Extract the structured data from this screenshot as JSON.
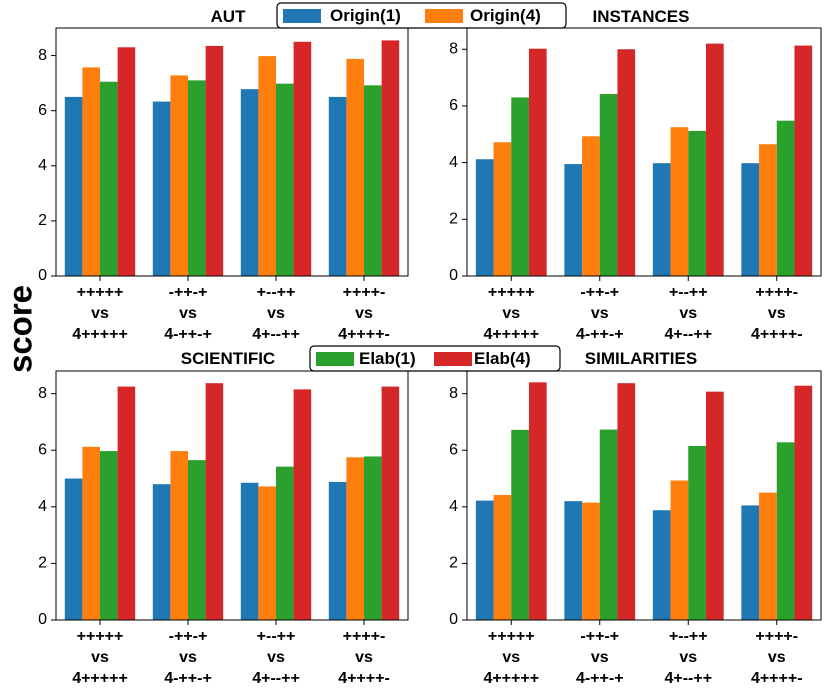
{
  "figure": {
    "ylabel": "score",
    "legend_top": [
      "Origin(1)",
      "Origin(4)"
    ],
    "legend_bottom": [
      "Elab(1)",
      "Elab(4)"
    ]
  },
  "chart_data": [
    {
      "type": "bar",
      "title": "AUT",
      "categories": [
        [
          "+++++",
          "vs",
          "4+++++"
        ],
        [
          "-++-+",
          "vs",
          "4-++-+"
        ],
        [
          "+--++",
          "vs",
          "4+--++"
        ],
        [
          "++++-",
          "vs",
          "4++++-"
        ]
      ],
      "ylim": [
        0,
        9
      ],
      "yticks": [
        0,
        2,
        4,
        6,
        8
      ],
      "series": [
        {
          "name": "Origin(1)",
          "color": "#1f77b4",
          "values": [
            6.5,
            6.33,
            6.78,
            6.5
          ]
        },
        {
          "name": "Origin(4)",
          "color": "#ff7f0e",
          "values": [
            7.57,
            7.28,
            7.98,
            7.88
          ]
        },
        {
          "name": "Elab(1)",
          "color": "#2ca02c",
          "values": [
            7.05,
            7.1,
            6.98,
            6.92
          ]
        },
        {
          "name": "Elab(4)",
          "color": "#d62728",
          "values": [
            8.3,
            8.35,
            8.5,
            8.55
          ]
        }
      ]
    },
    {
      "type": "bar",
      "title": "INSTANCES",
      "categories": [
        [
          "+++++",
          "vs",
          "4+++++"
        ],
        [
          "-++-+",
          "vs",
          "4-++-+"
        ],
        [
          "+--++",
          "vs",
          "4+--++"
        ],
        [
          "++++-",
          "vs",
          "4++++-"
        ]
      ],
      "ylim": [
        0,
        8.75
      ],
      "yticks": [
        0,
        2,
        4,
        6,
        8
      ],
      "series": [
        {
          "name": "Origin(1)",
          "color": "#1f77b4",
          "values": [
            4.12,
            3.95,
            3.98,
            3.98
          ]
        },
        {
          "name": "Origin(4)",
          "color": "#ff7f0e",
          "values": [
            4.72,
            4.93,
            5.25,
            4.65
          ]
        },
        {
          "name": "Elab(1)",
          "color": "#2ca02c",
          "values": [
            6.3,
            6.42,
            5.12,
            5.48
          ]
        },
        {
          "name": "Elab(4)",
          "color": "#d62728",
          "values": [
            8.02,
            8.0,
            8.2,
            8.13
          ]
        }
      ]
    },
    {
      "type": "bar",
      "title": "SCIENTIFIC",
      "categories": [
        [
          "+++++",
          "vs",
          "4+++++"
        ],
        [
          "-++-+",
          "vs",
          "4-++-+"
        ],
        [
          "+--++",
          "vs",
          "4+--++"
        ],
        [
          "++++-",
          "vs",
          "4++++-"
        ]
      ],
      "ylim": [
        0,
        8.8
      ],
      "yticks": [
        0,
        2,
        4,
        6,
        8
      ],
      "series": [
        {
          "name": "Origin(1)",
          "color": "#1f77b4",
          "values": [
            5.0,
            4.8,
            4.85,
            4.88
          ]
        },
        {
          "name": "Origin(4)",
          "color": "#ff7f0e",
          "values": [
            6.12,
            5.97,
            4.72,
            5.75
          ]
        },
        {
          "name": "Elab(1)",
          "color": "#2ca02c",
          "values": [
            5.97,
            5.65,
            5.42,
            5.78
          ]
        },
        {
          "name": "Elab(4)",
          "color": "#d62728",
          "values": [
            8.25,
            8.37,
            8.15,
            8.25
          ]
        }
      ]
    },
    {
      "type": "bar",
      "title": "SIMILARITIES",
      "categories": [
        [
          "+++++",
          "vs",
          "4+++++"
        ],
        [
          "-++-+",
          "vs",
          "4-++-+"
        ],
        [
          "+--++",
          "vs",
          "4+--++"
        ],
        [
          "++++-",
          "vs",
          "4++++-"
        ]
      ],
      "ylim": [
        0,
        8.8
      ],
      "yticks": [
        0,
        2,
        4,
        6,
        8
      ],
      "series": [
        {
          "name": "Origin(1)",
          "color": "#1f77b4",
          "values": [
            4.22,
            4.2,
            3.88,
            4.05
          ]
        },
        {
          "name": "Origin(4)",
          "color": "#ff7f0e",
          "values": [
            4.42,
            4.15,
            4.93,
            4.5
          ]
        },
        {
          "name": "Elab(1)",
          "color": "#2ca02c",
          "values": [
            6.72,
            6.73,
            6.15,
            6.28
          ]
        },
        {
          "name": "Elab(4)",
          "color": "#d62728",
          "values": [
            8.4,
            8.37,
            8.07,
            8.28
          ]
        }
      ]
    }
  ]
}
